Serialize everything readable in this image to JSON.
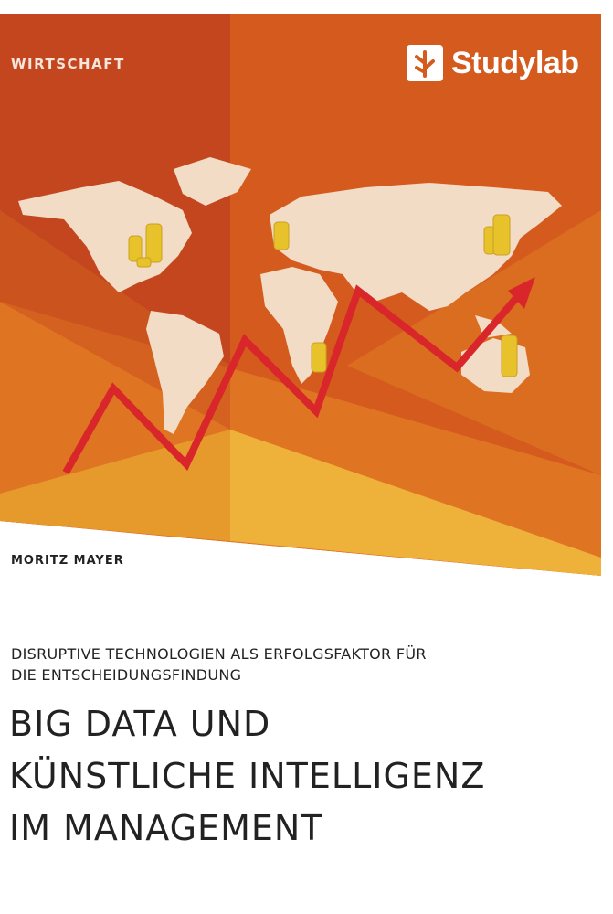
{
  "cover": {
    "series": "WIRTSCHAFT",
    "publisher": "Studylab",
    "author": "MORITZ MAYER",
    "subtitle_lines": [
      "DISRUPTIVE TECHNOLOGIEN ALS ERFOLGSFAKTOR FÜR",
      "DIE ENTSCHEIDUNGSFINDUNG"
    ],
    "title_lines": [
      "BIG DATA UND",
      "KÜNSTLICHE INTELLIGENZ",
      "IM MANAGEMENT"
    ]
  },
  "colors": {
    "panel_dark": "#c4461e",
    "panel_mid": "#d45a1e",
    "panel_light": "#e07a22",
    "panel_yellow": "#eeb23a",
    "map": "#f2dcc6",
    "arrow": "#d8262a",
    "coins": "#e8c22a"
  },
  "icons": [
    "studylab-logo-icon",
    "world-map",
    "rising-arrow",
    "coin-stack"
  ]
}
